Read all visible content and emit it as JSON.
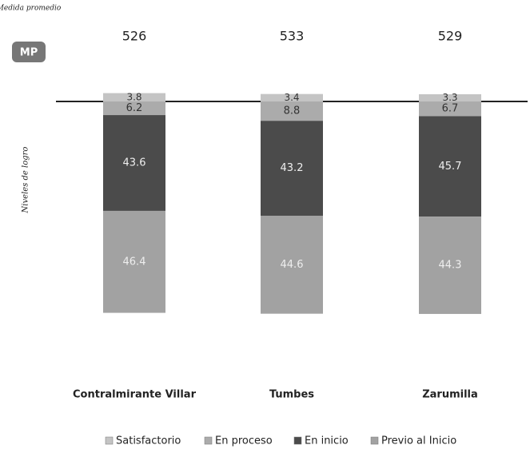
{
  "chart_data": {
    "type": "bar",
    "stacked": true,
    "average_label": "Medida promedio",
    "average_badge": "MP",
    "ylabel": "Niveles de logro",
    "categories": [
      "Contralmirante Villar",
      "Tumbes",
      "Zarumilla"
    ],
    "averages": [
      526,
      533,
      529
    ],
    "series": [
      {
        "name": "Satisfactorio",
        "color": "#c4c4c4",
        "values": [
          3.8,
          3.4,
          3.3
        ]
      },
      {
        "name": "En proceso",
        "color": "#ababab",
        "values": [
          6.2,
          8.8,
          6.7
        ]
      },
      {
        "name": "En inicio",
        "color": "#4b4b4b",
        "values": [
          43.6,
          43.2,
          45.7
        ]
      },
      {
        "name": "Previo al Inicio",
        "color": "#a2a2a2",
        "values": [
          46.4,
          44.6,
          44.3
        ]
      }
    ],
    "ylim": [
      0,
      100
    ]
  }
}
